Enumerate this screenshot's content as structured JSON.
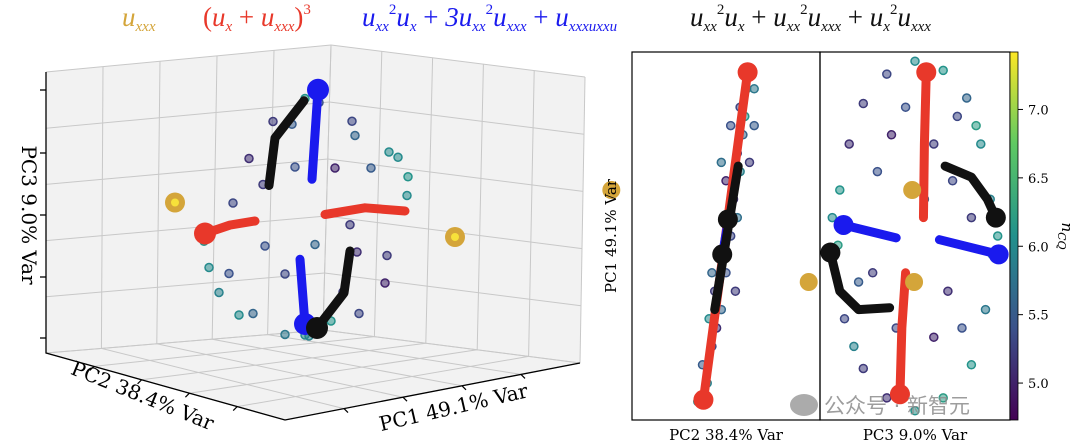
{
  "legend_titles": [
    {
      "text": "u_xxx",
      "color": "#d4a53a"
    },
    {
      "text": "(u_x + u_xxx)^3",
      "color": "#e8382a"
    },
    {
      "text": "u_xx^2u_x + 3u_xx^2u_xxx + u_xxxu_xxu",
      "color": "#1a1aee"
    },
    {
      "text": "u_xx^2u_x + u_xx^2u_xxx + u_x^2u_xxx",
      "color": "#111111"
    }
  ],
  "watermark": "公众号 · 新智元",
  "chart_data": [
    {
      "type": "scatter3d",
      "xlabel": "PC1 49.1% Var",
      "ylabel": "PC2 38.4% Var",
      "zlabel": "PC3 9.0% Var",
      "grid": true,
      "points": [
        [
          0,
          0,
          1.15,
          6.1
        ],
        [
          0.2,
          0.1,
          1.05,
          5.4
        ],
        [
          -0.2,
          0.2,
          0.95,
          5.2
        ],
        [
          0.35,
          -0.2,
          0.9,
          5.3
        ],
        [
          0.5,
          0,
          0.7,
          5.6
        ],
        [
          -0.5,
          0.1,
          0.7,
          5.1
        ],
        [
          0.75,
          -0.3,
          0.5,
          6.0
        ],
        [
          0.85,
          -0.3,
          0.3,
          6.1
        ],
        [
          0.9,
          -0.2,
          0.1,
          6.0
        ],
        [
          -0.95,
          0.1,
          0.05,
          6.1
        ],
        [
          -0.9,
          0.1,
          -0.2,
          6.0
        ],
        [
          -0.8,
          0.1,
          -0.45,
          5.9
        ],
        [
          -0.6,
          0.1,
          -0.7,
          6.0
        ],
        [
          0.7,
          -0.2,
          -0.4,
          5.2
        ],
        [
          0.5,
          -0.5,
          -0.55,
          5.0
        ],
        [
          0.3,
          -0.4,
          -0.8,
          5.3
        ],
        [
          0,
          0,
          -1.0,
          6.0
        ],
        [
          0.1,
          0.1,
          -1.05,
          5.9
        ],
        [
          -0.2,
          0,
          -0.95,
          5.8
        ],
        [
          0.2,
          -0.1,
          -0.9,
          6.1
        ],
        [
          -0.3,
          0.2,
          0.4,
          5.2
        ],
        [
          0.3,
          0,
          0.45,
          5.0
        ],
        [
          -0.1,
          0,
          0.55,
          5.4
        ],
        [
          0.45,
          0,
          -0.1,
          5.2
        ],
        [
          -0.4,
          0,
          -0.1,
          5.4
        ],
        [
          0.1,
          0,
          -0.2,
          5.6
        ],
        [
          -0.2,
          0,
          -0.4,
          5.3
        ],
        [
          0.4,
          -0.2,
          -0.3,
          5.1
        ],
        [
          0.6,
          -0.1,
          0.4,
          5.5
        ],
        [
          -0.6,
          0.2,
          0.3,
          5.3
        ],
        [
          -0.7,
          0.1,
          -0.3,
          5.4
        ],
        [
          0.2,
          -0.3,
          -0.6,
          5.2
        ],
        [
          -0.4,
          0.2,
          -0.75,
          5.6
        ],
        [
          0.05,
          0.3,
          0.85,
          5.5
        ],
        [
          0.6,
          -0.4,
          0.6,
          6.0
        ]
      ],
      "curves": [
        {
          "color": "#e8382a",
          "points": [
            [
              -1,
              0,
              0.15
            ],
            [
              -0.75,
              0,
              0.17
            ],
            [
              -0.5,
              0,
              0.15
            ]
          ],
          "end_markers": [
            0
          ]
        },
        {
          "color": "#e8382a",
          "points": [
            [
              0.2,
              0,
              0.05
            ],
            [
              0.6,
              0,
              0.02
            ],
            [
              1,
              0,
              -0.1
            ]
          ],
          "end_markers": []
        },
        {
          "color": "#1a1aee",
          "points": [
            [
              0.13,
              0,
              1.2
            ],
            [
              0.07,
              0,
              0.4
            ]
          ],
          "end_markers": [
            0
          ]
        },
        {
          "color": "#1a1aee",
          "points": [
            [
              -0.05,
              0,
              -0.3
            ],
            [
              0,
              0,
              -0.9
            ]
          ],
          "end_markers": [
            1
          ]
        },
        {
          "color": "#111111",
          "points": [
            [
              0.05,
              0.1,
              1.1
            ],
            [
              0,
              0.5,
              0.7
            ],
            [
              0,
              0.6,
              0.25
            ]
          ],
          "end_markers": []
        },
        {
          "color": "#111111",
          "points": [
            [
              0,
              -0.75,
              -0.1
            ],
            [
              0,
              -0.65,
              -0.5
            ],
            [
              0,
              -0.2,
              -0.9
            ]
          ],
          "end_markers": [
            2
          ]
        }
      ],
      "gold_points": [
        [
          -1.3,
          0,
          0.5
        ],
        [
          1.5,
          0,
          -0.45
        ]
      ]
    },
    {
      "type": "scatter",
      "xlabel": "PC2 38.4% Var",
      "ylabel": "PC1 49.1% Var",
      "points": [
        [
          -0.2,
          -0.8,
          5.9
        ],
        [
          -0.15,
          -0.6,
          5.3
        ],
        [
          -0.1,
          -0.5,
          5.1
        ],
        [
          -0.05,
          -0.4,
          5.6
        ],
        [
          -0.12,
          -0.3,
          5.2
        ],
        [
          0.0,
          -0.2,
          5.4
        ],
        [
          -0.05,
          -0.1,
          6.0
        ],
        [
          0.05,
          0.0,
          5.3
        ],
        [
          0.02,
          0.1,
          5.8
        ],
        [
          0.08,
          0.2,
          5.1
        ],
        [
          0.1,
          0.3,
          5.5
        ],
        [
          0.15,
          0.35,
          5.9
        ],
        [
          0.12,
          0.45,
          5.2
        ],
        [
          0.18,
          0.55,
          5.6
        ],
        [
          0.2,
          0.65,
          6.1
        ],
        [
          0.15,
          0.7,
          5.3
        ],
        [
          0.22,
          0.8,
          6.2
        ],
        [
          0.25,
          0.9,
          6.3
        ],
        [
          0.05,
          0.6,
          5.4
        ],
        [
          -0.05,
          0.4,
          5.7
        ],
        [
          0.25,
          0.4,
          5.2
        ],
        [
          0.3,
          0.6,
          5.5
        ],
        [
          -0.25,
          -0.7,
          5.5
        ],
        [
          -0.3,
          -0.9,
          6.0
        ],
        [
          0.1,
          -0.3,
          5.2
        ],
        [
          0.0,
          0.3,
          5.0
        ],
        [
          0.3,
          0.8,
          5.8
        ],
        [
          -0.15,
          -0.2,
          5.6
        ],
        [
          0.12,
          0.1,
          5.7
        ],
        [
          -0.18,
          -0.45,
          6.0
        ]
      ],
      "curves": [
        {
          "color": "#e8382a",
          "points": [
            [
              -0.24,
              -0.89
            ],
            [
              0.23,
              0.89
            ]
          ],
          "end_markers": [
            0,
            1
          ]
        },
        {
          "color": "#1a1aee",
          "points": [
            [
              -0.03,
              -0.08
            ],
            [
              0.03,
              0.1
            ]
          ],
          "end_markers": []
        },
        {
          "color": "#111111",
          "points": [
            [
              -0.12,
              -0.4
            ],
            [
              0.13,
              0.38
            ]
          ],
          "end_markers": [],
          "markers": [
            [
              0.02,
              0.09
            ],
            [
              -0.04,
              -0.1
            ]
          ]
        }
      ],
      "gold_points": [
        [
          -1.22,
          0.25
        ],
        [
          0.88,
          -0.25
        ]
      ]
    },
    {
      "type": "scatter",
      "xlabel": "PC3 9.0% Var",
      "ylabel": "PC1 49.1% Var",
      "points": [
        [
          0.0,
          0.95,
          6.0
        ],
        [
          0.3,
          0.9,
          6.1
        ],
        [
          -0.3,
          0.88,
          5.3
        ],
        [
          0.55,
          0.75,
          5.6
        ],
        [
          -0.55,
          0.72,
          5.2
        ],
        [
          0.7,
          0.5,
          6.0
        ],
        [
          -0.7,
          0.5,
          5.1
        ],
        [
          0.8,
          0.2,
          5.9
        ],
        [
          -0.8,
          0.25,
          6.1
        ],
        [
          0.82,
          -0.1,
          6.0
        ],
        [
          -0.82,
          -0.05,
          6.2
        ],
        [
          0.75,
          -0.4,
          5.8
        ],
        [
          -0.75,
          -0.45,
          5.3
        ],
        [
          0.6,
          -0.7,
          6.1
        ],
        [
          -0.55,
          -0.72,
          5.2
        ],
        [
          0.3,
          -0.88,
          6.2
        ],
        [
          -0.3,
          -0.88,
          5.1
        ],
        [
          0.0,
          -0.95,
          6.1
        ],
        [
          0.2,
          0.5,
          5.2
        ],
        [
          -0.25,
          0.55,
          5.0
        ],
        [
          0.4,
          0.3,
          5.3
        ],
        [
          -0.4,
          0.35,
          5.4
        ],
        [
          0.1,
          0.2,
          5.6
        ],
        [
          -0.45,
          -0.2,
          5.2
        ],
        [
          0.35,
          -0.3,
          5.1
        ],
        [
          -0.2,
          -0.5,
          5.3
        ],
        [
          0.2,
          -0.55,
          5.0
        ],
        [
          0.5,
          -0.5,
          5.4
        ],
        [
          -0.6,
          -0.25,
          5.5
        ],
        [
          0.6,
          0.1,
          5.2
        ],
        [
          -0.1,
          0.7,
          5.4
        ],
        [
          0.45,
          0.65,
          5.3
        ],
        [
          0.88,
          0.0,
          6.1
        ],
        [
          -0.88,
          0.1,
          6.0
        ],
        [
          0.65,
          0.6,
          6.2
        ],
        [
          -0.65,
          -0.6,
          5.9
        ]
      ],
      "curves": [
        {
          "color": "#e8382a",
          "points": [
            [
              0.12,
              0.89
            ],
            [
              0.1,
              0.5
            ],
            [
              0.09,
              0.1
            ]
          ],
          "end_markers": [
            0
          ]
        },
        {
          "color": "#e8382a",
          "points": [
            [
              -0.1,
              -0.2
            ],
            [
              -0.14,
              -0.5
            ],
            [
              -0.16,
              -0.86
            ]
          ],
          "end_markers": [
            2
          ]
        },
        {
          "color": "#1a1aee",
          "points": [
            [
              -0.76,
              0.06
            ],
            [
              -0.2,
              -0.01
            ]
          ],
          "end_markers": [
            0
          ]
        },
        {
          "color": "#1a1aee",
          "points": [
            [
              0.26,
              -0.02
            ],
            [
              0.89,
              -0.1
            ]
          ],
          "end_markers": [
            1
          ]
        },
        {
          "color": "#111111",
          "points": [
            [
              0.32,
              0.38
            ],
            [
              0.6,
              0.32
            ],
            [
              0.77,
              0.2
            ],
            [
              0.86,
              0.1
            ]
          ],
          "end_markers": [
            3
          ]
        },
        {
          "color": "#111111",
          "points": [
            [
              -0.9,
              -0.09
            ],
            [
              -0.8,
              -0.3
            ],
            [
              -0.6,
              -0.4
            ],
            [
              -0.27,
              -0.39
            ]
          ],
          "end_markers": [
            0
          ]
        }
      ],
      "gold_points": [
        [
          -0.03,
          0.25
        ],
        [
          -0.01,
          -0.25
        ]
      ]
    }
  ],
  "colorbar": {
    "label": "n_CQ",
    "colormap": "viridis",
    "range": [
      4.73,
      7.42
    ],
    "ticks": [
      "5.0",
      "5.5",
      "6.0",
      "6.5",
      "7.0"
    ]
  },
  "gold_color": "#d4a53a"
}
